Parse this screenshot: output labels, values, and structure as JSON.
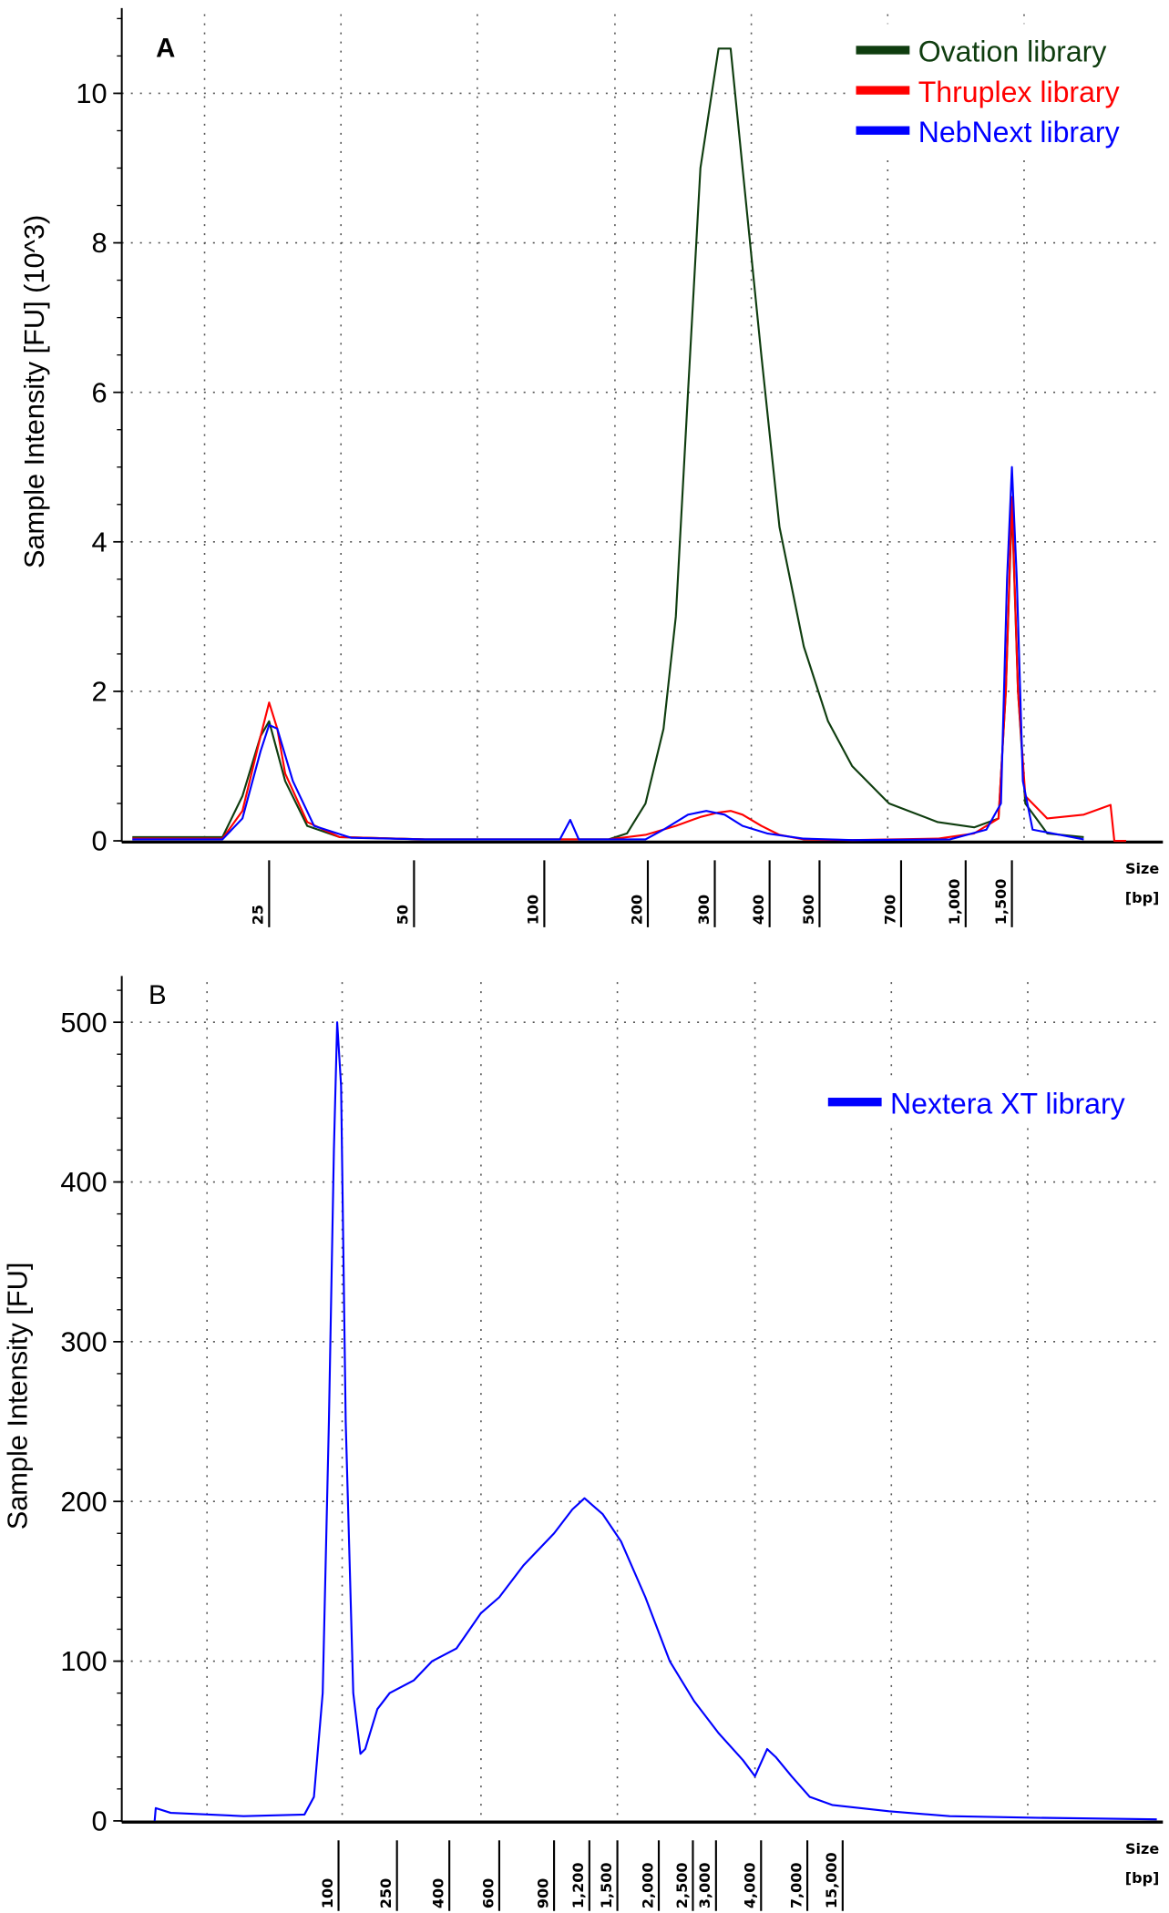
{
  "chart_data": [
    {
      "type": "line",
      "panel_label": "A",
      "ylabel": "Sample Intensity [FU] (10^3)",
      "xlabel": "Size [bp]",
      "xlabel_lines": [
        "Size",
        "[bp]"
      ],
      "ylim": [
        0,
        11
      ],
      "yticks": [
        0,
        2,
        4,
        6,
        8,
        10
      ],
      "xticks": [
        "25",
        "50",
        "100",
        "200",
        "300",
        "400",
        "500",
        "700",
        "1,000",
        "1,500"
      ],
      "xtick_values": [
        25,
        50,
        100,
        200,
        300,
        400,
        500,
        700,
        1000,
        1500
      ],
      "grid": true,
      "legend_position": "top-right",
      "series": [
        {
          "name": "Ovation library",
          "color": "#0f3d0f",
          "points": [
            [
              13,
              0.05
            ],
            [
              20,
              0.05
            ],
            [
              22,
              0.6
            ],
            [
              24,
              1.4
            ],
            [
              25,
              1.6
            ],
            [
              27,
              0.8
            ],
            [
              30,
              0.2
            ],
            [
              35,
              0.05
            ],
            [
              53,
              0.02
            ],
            [
              154,
              0.02
            ],
            [
              174,
              0.1
            ],
            [
              197,
              0.5
            ],
            [
              220,
              1.5
            ],
            [
              237,
              3
            ],
            [
              255,
              6
            ],
            [
              275,
              9
            ],
            [
              306,
              10.6
            ],
            [
              326,
              10.6
            ],
            [
              347,
              9
            ],
            [
              383,
              6.5
            ],
            [
              418,
              4.2
            ],
            [
              466,
              2.6
            ],
            [
              518,
              1.6
            ],
            [
              572,
              1.0
            ],
            [
              666,
              0.5
            ],
            [
              857,
              0.25
            ],
            [
              1077,
              0.18
            ],
            [
              1334,
              0.3
            ],
            [
              1422,
              2
            ],
            [
              1500,
              4.5
            ],
            [
              1582,
              2
            ],
            [
              1686,
              0.5
            ],
            [
              2045,
              0.1
            ],
            [
              2815,
              0.05
            ]
          ]
        },
        {
          "name": "Thruplex library",
          "color": "#ff0000",
          "points": [
            [
              13,
              0.03
            ],
            [
              20,
              0.03
            ],
            [
              22,
              0.4
            ],
            [
              24,
              1.4
            ],
            [
              25,
              1.85
            ],
            [
              26,
              1.5
            ],
            [
              27,
              0.9
            ],
            [
              30,
              0.25
            ],
            [
              35,
              0.05
            ],
            [
              53,
              0.02
            ],
            [
              154,
              0.02
            ],
            [
              197,
              0.08
            ],
            [
              237,
              0.2
            ],
            [
              275,
              0.32
            ],
            [
              306,
              0.38
            ],
            [
              326,
              0.4
            ],
            [
              347,
              0.35
            ],
            [
              383,
              0.2
            ],
            [
              418,
              0.08
            ],
            [
              466,
              0.02
            ],
            [
              572,
              0.01
            ],
            [
              857,
              0.03
            ],
            [
              1077,
              0.1
            ],
            [
              1334,
              0.3
            ],
            [
              1422,
              2
            ],
            [
              1500,
              4.6
            ],
            [
              1582,
              2
            ],
            [
              1686,
              0.6
            ],
            [
              2045,
              0.3
            ],
            [
              2815,
              0.35
            ],
            [
              3560,
              0.48
            ],
            [
              3680,
              0
            ],
            [
              4083,
              0
            ]
          ]
        },
        {
          "name": "NebNext library",
          "color": "#0000ff",
          "points": [
            [
              13,
              0.02
            ],
            [
              20,
              0.02
            ],
            [
              22,
              0.3
            ],
            [
              24,
              1.2
            ],
            [
              25,
              1.55
            ],
            [
              26,
              1.5
            ],
            [
              28,
              0.8
            ],
            [
              31,
              0.2
            ],
            [
              37,
              0.04
            ],
            [
              53,
              0.02
            ],
            [
              111,
              0.02
            ],
            [
              119,
              0.28
            ],
            [
              126,
              0.02
            ],
            [
              197,
              0.02
            ],
            [
              220,
              0.15
            ],
            [
              255,
              0.35
            ],
            [
              285,
              0.4
            ],
            [
              316,
              0.35
            ],
            [
              347,
              0.2
            ],
            [
              395,
              0.1
            ],
            [
              466,
              0.03
            ],
            [
              572,
              0.01
            ],
            [
              916,
              0.02
            ],
            [
              1199,
              0.15
            ],
            [
              1363,
              0.5
            ],
            [
              1437,
              3.5
            ],
            [
              1500,
              5.0
            ],
            [
              1565,
              3.5
            ],
            [
              1651,
              0.8
            ],
            [
              1799,
              0.15
            ],
            [
              2815,
              0.02
            ]
          ]
        }
      ]
    },
    {
      "type": "line",
      "panel_label": "B",
      "ylabel": "Sample Intensity [FU]",
      "xlabel": "Size [bp]",
      "xlabel_lines": [
        "Size",
        "[bp]"
      ],
      "ylim": [
        0,
        525
      ],
      "yticks": [
        0,
        100,
        200,
        300,
        400,
        500
      ],
      "xticks": [
        "100",
        "250",
        "400",
        "600",
        "900",
        "1,200",
        "1,500",
        "2,000",
        "2,500",
        "3,000",
        "4,000",
        "7,000",
        "15,000"
      ],
      "xtick_values": [
        100,
        250,
        400,
        600,
        900,
        1200,
        1500,
        2000,
        2500,
        3000,
        4000,
        7000,
        15000
      ],
      "grid": true,
      "legend_position": "top-right",
      "series": [
        {
          "name": "Nextera XT library",
          "color": "#0000ff",
          "points": [
            [
              5.6,
              0
            ],
            [
              5.7,
              8
            ],
            [
              7.2,
              5
            ],
            [
              22.6,
              3
            ],
            [
              58.6,
              4
            ],
            [
              68,
              15
            ],
            [
              78,
              80
            ],
            [
              86,
              250
            ],
            [
              93,
              420
            ],
            [
              98,
              500
            ],
            [
              104,
              460
            ],
            [
              112,
              250
            ],
            [
              126,
              80
            ],
            [
              141,
              42
            ],
            [
              152,
              45
            ],
            [
              184,
              70
            ],
            [
              223,
              80
            ],
            [
              291,
              88
            ],
            [
              343,
              100
            ],
            [
              424,
              108
            ],
            [
              517,
              130
            ],
            [
              600,
              140
            ],
            [
              718,
              160
            ],
            [
              900,
              180
            ],
            [
              1044,
              195
            ],
            [
              1153,
              202
            ],
            [
              1335,
              192
            ],
            [
              1539,
              175
            ],
            [
              1822,
              140
            ],
            [
              2149,
              100
            ],
            [
              2524,
              75
            ],
            [
              3047,
              55
            ],
            [
              3562,
              38
            ],
            [
              3847,
              28
            ],
            [
              4306,
              45
            ],
            [
              4773,
              40
            ],
            [
              5781,
              28
            ],
            [
              7380,
              15
            ],
            [
              11970,
              10
            ],
            [
              40700,
              6
            ],
            [
              151000,
              3
            ],
            [
              954000,
              2
            ],
            [
              13200000,
              1
            ]
          ]
        }
      ]
    }
  ]
}
